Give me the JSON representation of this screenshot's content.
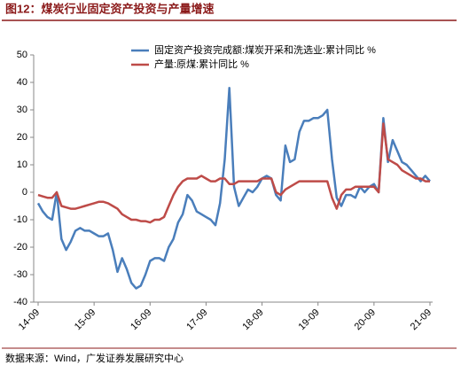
{
  "chart_data": {
    "type": "line",
    "title": "图12：煤炭行业固定资产投资与产量增速",
    "source": "数据来源：Wind，广发证券发展研究中心",
    "categories": [
      "14-09",
      null,
      null,
      null,
      null,
      null,
      null,
      null,
      null,
      null,
      null,
      null,
      "15-09",
      null,
      null,
      null,
      null,
      null,
      null,
      null,
      null,
      null,
      null,
      null,
      "16-09",
      null,
      null,
      null,
      null,
      null,
      null,
      null,
      null,
      null,
      null,
      null,
      "17-09",
      null,
      null,
      null,
      null,
      null,
      null,
      null,
      null,
      null,
      null,
      null,
      "18-09",
      null,
      null,
      null,
      null,
      null,
      null,
      null,
      null,
      null,
      null,
      null,
      "19-09",
      null,
      null,
      null,
      null,
      null,
      null,
      null,
      null,
      null,
      null,
      null,
      "20-09",
      null,
      null,
      null,
      null,
      null,
      null,
      null,
      null,
      null,
      null,
      null,
      "21-09"
    ],
    "series": [
      {
        "name": "固定资产投资完成额:煤炭开采和洗选业:累计同比 %",
        "color": "#4a7ebb",
        "values": [
          -4,
          -7,
          -9,
          -10,
          0,
          -17,
          -21,
          -18,
          -14,
          -13,
          -14,
          -14,
          -15,
          -16,
          -16,
          -15,
          -21,
          -29,
          -24,
          -28,
          -33,
          -35,
          -34,
          -30,
          -25,
          -24,
          -24,
          -25,
          -20,
          -17,
          -11,
          -8,
          -1,
          -3,
          -7,
          -8,
          -9,
          -10,
          -12,
          -4,
          12,
          38,
          2,
          -5,
          -2,
          1,
          0,
          2,
          5,
          6,
          5,
          -1,
          -3,
          17,
          11,
          12,
          22,
          26,
          26,
          27,
          27,
          28,
          30,
          12,
          -2,
          -5,
          -1,
          -1,
          -2,
          2,
          0,
          2,
          3,
          0,
          27,
          11,
          19,
          15,
          11,
          10,
          8,
          6,
          4,
          6,
          4
        ]
      },
      {
        "name": "产量:原煤:累计同比 %",
        "color": "#be4b48",
        "values": [
          -1,
          -1.5,
          -2,
          -2,
          0,
          -5,
          -5.5,
          -6,
          -6,
          -5.5,
          -5,
          -4.5,
          -4,
          -3.5,
          -3.5,
          -4,
          -5,
          -6,
          -8,
          -9,
          -10,
          -10,
          -10.5,
          -10.5,
          -11,
          -10,
          -10,
          -9,
          -5,
          -1,
          2,
          4,
          5,
          5,
          5,
          6,
          5,
          4,
          4,
          5,
          5,
          3,
          3,
          4,
          4,
          4,
          4,
          4,
          5,
          5,
          5,
          0,
          -1,
          1,
          2,
          3,
          4,
          4,
          4,
          4,
          4,
          4,
          4,
          -2,
          -6,
          -1,
          1,
          1,
          2,
          2,
          2,
          2,
          2,
          0,
          25,
          12,
          11,
          10,
          8,
          7,
          6,
          5,
          5,
          4,
          4
        ]
      }
    ],
    "ylim": [
      -40,
      50
    ],
    "yticks": [
      -40,
      -30,
      -20,
      -10,
      0,
      10,
      20,
      30,
      40,
      50
    ],
    "grid": false,
    "legend": "top"
  }
}
